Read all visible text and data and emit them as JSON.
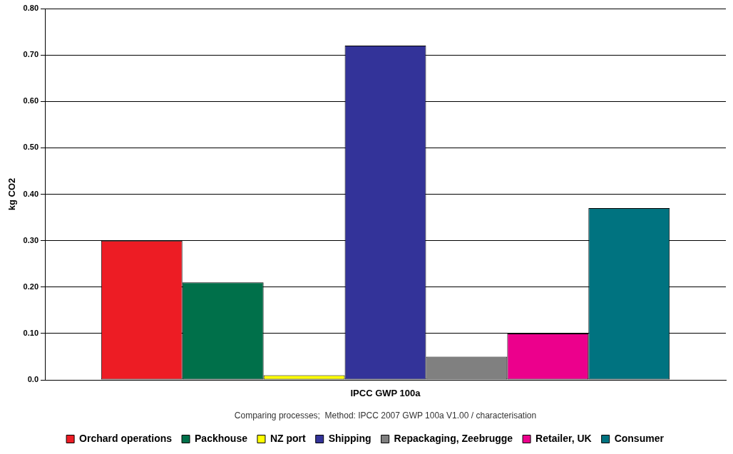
{
  "chart_data": {
    "type": "bar",
    "categories": [
      "IPCC GWP 100a"
    ],
    "ylabel": "kg CO2",
    "xlabel": "Comparing processes;  Method: IPCC 2007 GWP 100a V1.00 / characterisation",
    "ylim": [
      0,
      0.8
    ],
    "yticks": [
      {
        "value": 0,
        "label": "0.0"
      },
      {
        "value": 0.1,
        "label": "0.10"
      },
      {
        "value": 0.2,
        "label": "0.20"
      },
      {
        "value": 0.3,
        "label": "0.30"
      },
      {
        "value": 0.4,
        "label": "0.40"
      },
      {
        "value": 0.5,
        "label": "0.50"
      },
      {
        "value": 0.6,
        "label": "0.60"
      },
      {
        "value": 0.7,
        "label": "0.70"
      },
      {
        "value": 0.8,
        "label": "0.80"
      }
    ],
    "grid": "y",
    "legend": "bottom",
    "series": [
      {
        "name": "Orchard operations",
        "color": "#ed1c24",
        "values": [
          0.3
        ]
      },
      {
        "name": "Packhouse",
        "color": "#00704a",
        "values": [
          0.21
        ]
      },
      {
        "name": "NZ port",
        "color": "#ffff00",
        "values": [
          0.01
        ]
      },
      {
        "name": "Shipping",
        "color": "#333399",
        "values": [
          0.72
        ]
      },
      {
        "name": "Repackaging, Zeebrugge",
        "color": "#808080",
        "values": [
          0.05
        ]
      },
      {
        "name": "Retailer, UK",
        "color": "#ec008c",
        "values": [
          0.1
        ]
      },
      {
        "name": "Consumer",
        "color": "#007380",
        "values": [
          0.37
        ]
      }
    ]
  }
}
